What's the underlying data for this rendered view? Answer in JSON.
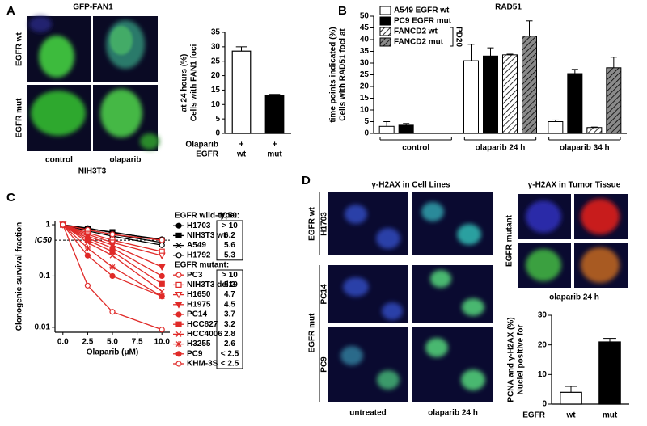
{
  "figure": {
    "panel_labels": [
      "A",
      "B",
      "C",
      "D"
    ],
    "a_images": {
      "title": "GFP-FAN1",
      "rows": [
        "EGFR wt",
        "EGFR mut"
      ],
      "columns": [
        "control",
        "olaparib"
      ],
      "caption": "NIH3T3"
    },
    "d_images": {
      "title": "γ-H2AX in Cell Lines",
      "group_rows": [
        "EGFR wt",
        "EGFR mut"
      ],
      "rows": [
        "H1703",
        "PC14",
        "PC9"
      ],
      "columns": [
        "untreated",
        "olaparib 24 h"
      ]
    },
    "d_tissue": {
      "title": "γ-H2AX in Tumor Tissue",
      "row": "EGFR mutant",
      "caption": "olaparib 24 h"
    }
  },
  "chart_data": [
    {
      "type": "bar",
      "ylabel": [
        "Cells with FAN1 foci",
        "at 24 hours (%)"
      ],
      "row_labels": [
        "Olaparib",
        "EGFR"
      ],
      "treatment": [
        "+",
        "+"
      ],
      "categories": [
        "wt",
        "mut"
      ],
      "values": [
        28.5,
        13
      ],
      "errors": [
        1.5,
        0.5
      ],
      "colors": [
        "#ffffff",
        "#000000"
      ],
      "ylim": [
        0,
        35
      ],
      "yticks": [
        0,
        5,
        10,
        15,
        20,
        25,
        30,
        35
      ]
    },
    {
      "type": "grouped_bar",
      "title": "RAD51",
      "ylabel": [
        "Cells with RAD51 foci at",
        "time points indicated (%)"
      ],
      "categories": [
        "control",
        "olaparib 24 h",
        "olaparib 34 h"
      ],
      "series": [
        {
          "name": "A549 EGFR wt",
          "color": "#ffffff",
          "hatch": false,
          "values": [
            3,
            31,
            5
          ],
          "errors": [
            2,
            7,
            0.7
          ]
        },
        {
          "name": "PC9 EGFR mut",
          "color": "#000000",
          "hatch": false,
          "values": [
            3.5,
            33,
            25.5
          ],
          "errors": [
            0.7,
            3.5,
            1.8
          ]
        },
        {
          "name": "FANCD2 wt",
          "color": "#ffffff",
          "hatch": true,
          "values": [
            null,
            33.5,
            2.5
          ],
          "errors": [
            null,
            0.3,
            0.2
          ]
        },
        {
          "name": "FANCD2 mut",
          "color": "#8a8a8a",
          "hatch": true,
          "values": [
            null,
            41.5,
            28
          ],
          "errors": [
            null,
            6.5,
            4.5
          ]
        }
      ],
      "legend_note": "PD20",
      "ylim": [
        0,
        50
      ],
      "yticks": [
        0,
        5,
        10,
        15,
        20,
        25,
        30,
        35,
        40,
        45,
        50
      ]
    },
    {
      "type": "line",
      "ylabel": "Clonogenic survival fraction",
      "xlabel": "Olaparib (μM)",
      "log_y": true,
      "x": [
        0,
        2.5,
        5,
        10
      ],
      "xlim": [
        -0.8,
        10.8
      ],
      "xticks": [
        {
          "value": 0,
          "label": "0.0"
        },
        2.5,
        {
          "value": 5,
          "label": "5.0"
        },
        7.5,
        {
          "value": 10,
          "label": "10.0"
        }
      ],
      "ylim": [
        0.008,
        1.2
      ],
      "yticks": [
        0.01,
        0.1,
        1
      ],
      "reference_line": {
        "value": 0.5,
        "label": "IC50"
      },
      "ic50_title": "IC50:",
      "groups": [
        {
          "title": "EGFR wild-type:",
          "series": [
            {
              "name": "H1703",
              "color": "#000000",
              "marker": "circle",
              "ic50": "> 10",
              "values": [
                1,
                0.86,
                0.7,
                0.52
              ]
            },
            {
              "name": "NIH3T3 wt",
              "color": "#000000",
              "marker": "square",
              "ic50": "6.2",
              "values": [
                1,
                0.84,
                0.72,
                0.5
              ]
            },
            {
              "name": "A549",
              "color": "#000000",
              "marker": "x",
              "ic50": "5.6",
              "values": [
                1,
                0.8,
                0.65,
                0.45
              ]
            },
            {
              "name": "H1792",
              "color": "#000000",
              "marker": "open-circle",
              "ic50": "5.3",
              "values": [
                1,
                0.76,
                0.6,
                0.4
              ]
            }
          ]
        },
        {
          "title": "EGFR mutant:",
          "series": [
            {
              "name": "PC3",
              "color": "#e02a28",
              "marker": "open-circle",
              "ic50": "> 10",
              "values": [
                1,
                0.8,
                0.65,
                0.5
              ]
            },
            {
              "name": "NIH3T3 del19",
              "color": "#e02a28",
              "marker": "open-square",
              "ic50": "5.2",
              "values": [
                1,
                0.7,
                0.5,
                0.3
              ]
            },
            {
              "name": "H1650",
              "color": "#e02a28",
              "marker": "open-triangle",
              "ic50": "4.7",
              "values": [
                1,
                0.65,
                0.45,
                0.25
              ]
            },
            {
              "name": "H1975",
              "color": "#e02a28",
              "marker": "triangle",
              "ic50": "4.5",
              "values": [
                1,
                0.6,
                0.4,
                0.15
              ]
            },
            {
              "name": "PC14",
              "color": "#e02a28",
              "marker": "circle",
              "ic50": "3.7",
              "values": [
                1,
                0.55,
                0.35,
                0.1
              ]
            },
            {
              "name": "HCC827",
              "color": "#e02a28",
              "marker": "square",
              "ic50": "3.2",
              "values": [
                1,
                0.5,
                0.3,
                0.07
              ]
            },
            {
              "name": "HCC4006",
              "color": "#e02a28",
              "marker": "x",
              "ic50": "2.8",
              "values": [
                1,
                0.45,
                0.25,
                0.05
              ]
            },
            {
              "name": "H3255",
              "color": "#e02a28",
              "marker": "star",
              "ic50": "2.6",
              "values": [
                1,
                0.35,
                0.15,
                0.04
              ]
            },
            {
              "name": "PC9",
              "color": "#e02a28",
              "marker": "circle",
              "ic50": "< 2.5",
              "values": [
                1,
                0.25,
                0.1,
                0.04
              ]
            },
            {
              "name": "KHM-3S",
              "color": "#e02a28",
              "marker": "open-circle",
              "ic50": "< 2.5",
              "values": [
                1,
                0.065,
                0.02,
                0.009
              ]
            }
          ]
        }
      ]
    },
    {
      "type": "bar",
      "ylabel": [
        "Nuclei positive for",
        "PCNA and γ-H2AX (%)"
      ],
      "row_labels": [
        "EGFR"
      ],
      "categories": [
        "wt",
        "mut"
      ],
      "values": [
        4,
        21
      ],
      "errors": [
        2,
        1.2
      ],
      "colors": [
        "#ffffff",
        "#000000"
      ],
      "ylim": [
        0,
        30
      ],
      "yticks": [
        0,
        10,
        20,
        30
      ]
    }
  ]
}
